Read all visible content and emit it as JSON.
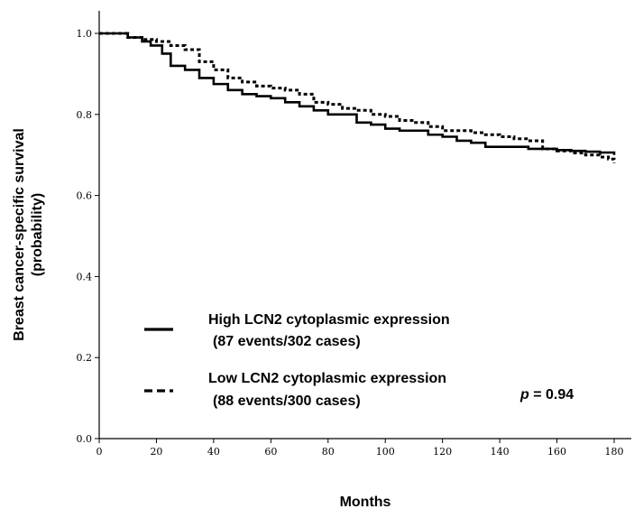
{
  "chart_data": {
    "type": "line",
    "xlabel": "Months",
    "ylabel_line1": "Breast cancer-specific survival",
    "ylabel_line2": "(probability)",
    "xlim": [
      0,
      180
    ],
    "ylim": [
      0.0,
      1.0
    ],
    "x_ticks": [
      0,
      20,
      40,
      60,
      80,
      100,
      120,
      140,
      160,
      180
    ],
    "x_tick_labels": [
      "0",
      "20",
      "40",
      "60",
      "80",
      "100",
      "120",
      "140",
      "160",
      "180"
    ],
    "y_ticks": [
      0.0,
      0.2,
      0.4,
      0.6,
      0.8,
      1.0
    ],
    "y_tick_labels": [
      "0.0",
      "0.2",
      "0.4",
      "0.6",
      "0.8",
      "1.0"
    ],
    "grid": false,
    "legend_position": "bottom-left",
    "series": [
      {
        "name": "High LCN2 cytoplasmic expression",
        "name_line2": "(87 events/302 cases)",
        "line_style": "solid",
        "color": "#000000",
        "x": [
          0,
          5,
          10,
          15,
          18,
          22,
          25,
          30,
          35,
          40,
          45,
          50,
          55,
          60,
          65,
          70,
          75,
          80,
          85,
          90,
          95,
          100,
          105,
          110,
          115,
          120,
          125,
          130,
          135,
          140,
          145,
          150,
          155,
          160,
          165,
          170,
          175,
          180
        ],
        "y": [
          1.0,
          1.0,
          0.99,
          0.98,
          0.97,
          0.95,
          0.92,
          0.91,
          0.89,
          0.875,
          0.86,
          0.85,
          0.845,
          0.84,
          0.83,
          0.82,
          0.81,
          0.8,
          0.8,
          0.78,
          0.775,
          0.765,
          0.76,
          0.76,
          0.75,
          0.745,
          0.735,
          0.73,
          0.72,
          0.72,
          0.72,
          0.715,
          0.715,
          0.712,
          0.71,
          0.708,
          0.706,
          0.7
        ]
      },
      {
        "name": "Low LCN2 cytoplasmic expression",
        "name_line2": "(88 events/300 cases)",
        "line_style": "dashed",
        "color": "#000000",
        "x": [
          0,
          5,
          10,
          15,
          20,
          25,
          30,
          35,
          40,
          45,
          50,
          55,
          60,
          65,
          70,
          75,
          80,
          85,
          90,
          95,
          100,
          105,
          110,
          115,
          120,
          125,
          130,
          135,
          140,
          145,
          150,
          155,
          160,
          165,
          170,
          175,
          178,
          180
        ],
        "y": [
          1.0,
          1.0,
          0.99,
          0.985,
          0.98,
          0.97,
          0.96,
          0.93,
          0.91,
          0.89,
          0.88,
          0.87,
          0.865,
          0.86,
          0.85,
          0.83,
          0.825,
          0.815,
          0.81,
          0.8,
          0.795,
          0.785,
          0.78,
          0.77,
          0.76,
          0.76,
          0.755,
          0.75,
          0.745,
          0.74,
          0.735,
          0.715,
          0.71,
          0.705,
          0.7,
          0.695,
          0.69,
          0.68
        ]
      }
    ],
    "annotation": {
      "label": "p",
      "text": " = 0.94"
    }
  }
}
